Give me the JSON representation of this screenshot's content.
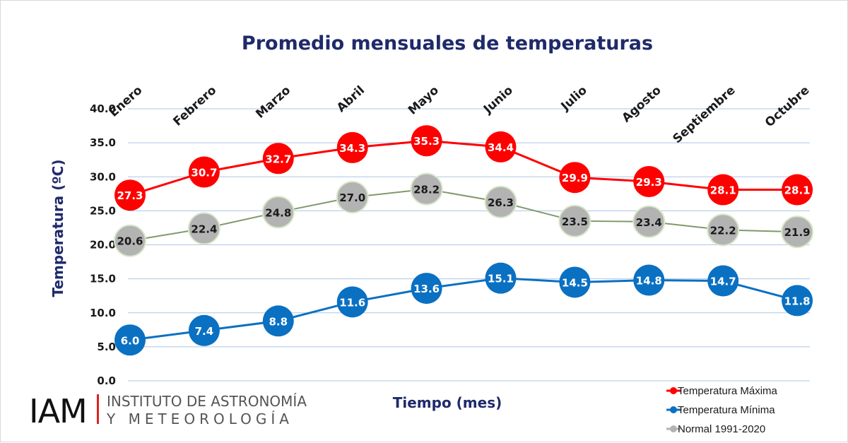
{
  "chart_data": {
    "type": "line",
    "title": "Promedio mensuales de temperaturas",
    "xlabel": "Tiempo (mes)",
    "ylabel": "Temperatura  (ºC)",
    "categories": [
      "Enero",
      "Febrero",
      "Marzo",
      "Abril",
      "Mayo",
      "Junio",
      "Julio",
      "Agosto",
      "Septiembre",
      "Octubre"
    ],
    "yticks": [
      "0.0",
      "5.0",
      "10.0",
      "15.0",
      "20.0",
      "25.0",
      "30.0",
      "35.0",
      "40.0"
    ],
    "ylim": [
      0,
      40
    ],
    "grid": true,
    "legend_position": "bottom-right",
    "series": [
      {
        "name": "Temperatura Máxima",
        "color": "#ff0000",
        "labels": [
          "27.3",
          "30.7",
          "32.7",
          "34.3",
          "35.3",
          "34.4",
          "29.9",
          "29.3",
          "28.1",
          "28.1"
        ],
        "values": [
          27.3,
          30.7,
          32.7,
          34.3,
          35.3,
          34.4,
          29.9,
          29.3,
          28.1,
          28.1
        ]
      },
      {
        "name": "Normal 1991-2020",
        "color": "#b3b3b3",
        "labels": [
          "20.6",
          "22.4",
          "24.8",
          "27.0",
          "28.2",
          "26.3",
          "23.5",
          "23.4",
          "22.2",
          "21.9"
        ],
        "values": [
          20.6,
          22.4,
          24.8,
          27.0,
          28.2,
          26.3,
          23.5,
          23.4,
          22.2,
          21.9
        ]
      },
      {
        "name": "Temperatura Mínima",
        "color": "#0a70c2",
        "labels": [
          "6.0",
          "7.4",
          "8.8",
          "11.6",
          "13.6",
          "15.1",
          "14.5",
          "14.8",
          "14.7",
          "11.8"
        ],
        "values": [
          6.0,
          7.4,
          8.8,
          11.6,
          13.6,
          15.1,
          14.5,
          14.8,
          14.7,
          11.8
        ]
      }
    ],
    "legend_order": [
      0,
      2,
      1
    ]
  },
  "logo": {
    "mark": "IAM",
    "line1": "INSTITUTO DE ASTRONOMÍA",
    "line2": "Y METEOROLOGÍA"
  }
}
